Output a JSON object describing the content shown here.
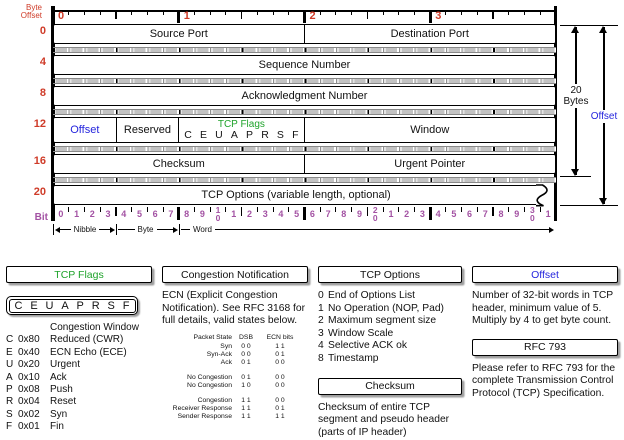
{
  "colors": {
    "red": "#cf3b28",
    "purple": "#a352a3",
    "green": "#1fa32b",
    "blue": "#2525dd",
    "ink": "#000000",
    "shadow": "#9e9e9e"
  },
  "diagram": {
    "byte_offset_label": "Byte Offset",
    "bit_label": "Bit",
    "byte_numbers": [
      "0",
      "1",
      "2",
      "3"
    ],
    "row_offsets": [
      "0",
      "4",
      "8",
      "12",
      "16",
      "20"
    ],
    "bit_numbers": [
      0,
      1,
      2,
      3,
      4,
      5,
      6,
      7,
      8,
      9,
      10,
      11,
      12,
      13,
      14,
      15,
      16,
      17,
      18,
      19,
      20,
      21,
      22,
      23,
      24,
      25,
      26,
      27,
      28,
      29,
      30,
      31
    ],
    "fields": {
      "source_port": "Source Port",
      "destination_port": "Destination Port",
      "sequence_number": "Sequence Number",
      "acknowledgment_number": "Acknowledgment Number",
      "offset": "Offset",
      "reserved": "Reserved",
      "tcp_flags_title": "TCP Flags",
      "tcp_flags_letters": [
        "C",
        "E",
        "U",
        "A",
        "P",
        "R",
        "S",
        "F"
      ],
      "window": "Window",
      "checksum": "Checksum",
      "urgent_pointer": "Urgent Pointer",
      "tcp_options": "TCP Options (variable length, optional)"
    },
    "scale": {
      "nibble": "Nibble",
      "byte": "Byte",
      "word": "Word"
    },
    "annotations": {
      "twenty_bytes": "20 Bytes",
      "offset": "Offset"
    }
  },
  "panels": {
    "tcp_flags": {
      "title": "TCP Flags",
      "letters": [
        "C",
        "E",
        "U",
        "A",
        "P",
        "R",
        "S",
        "F"
      ],
      "rows": [
        {
          "letter": "",
          "mask": "",
          "name": "Congestion Window"
        },
        {
          "letter": "C",
          "mask": "0x80",
          "name": "Reduced (CWR)"
        },
        {
          "letter": "E",
          "mask": "0x40",
          "name": "ECN Echo (ECE)"
        },
        {
          "letter": "U",
          "mask": "0x20",
          "name": "Urgent"
        },
        {
          "letter": "A",
          "mask": "0x10",
          "name": "Ack"
        },
        {
          "letter": "P",
          "mask": "0x08",
          "name": "Push"
        },
        {
          "letter": "R",
          "mask": "0x04",
          "name": "Reset"
        },
        {
          "letter": "S",
          "mask": "0x02",
          "name": "Syn"
        },
        {
          "letter": "F",
          "mask": "0x01",
          "name": "Fin"
        }
      ]
    },
    "congestion_notification": {
      "title": "Congestion Notification",
      "body": "ECN (Explicit Congestion Notification).  See RFC 3168 for full details, valid states below.",
      "table": {
        "headers": {
          "state": "Packet State",
          "dsb": "DSB",
          "ecn": "ECN bits"
        },
        "groups": {
          "handshake": [
            {
              "state": "Syn",
              "dsb": "0 0",
              "ecn": "1 1"
            },
            {
              "state": "Syn-Ack",
              "dsb": "0 0",
              "ecn": "0 1"
            },
            {
              "state": "Ack",
              "dsb": "0 1",
              "ecn": "0 0"
            }
          ],
          "no_congestion": [
            {
              "state": "No Congestion",
              "dsb": "0 1",
              "ecn": "0 0"
            },
            {
              "state": "No Congestion",
              "dsb": "1 0",
              "ecn": "0 0"
            }
          ],
          "congestion": [
            {
              "state": "Congestion",
              "dsb": "1 1",
              "ecn": "0 0"
            },
            {
              "state": "Receiver Response",
              "dsb": "1 1",
              "ecn": "0 1"
            },
            {
              "state": "Sender Response",
              "dsb": "1 1",
              "ecn": "1 1"
            }
          ]
        }
      }
    },
    "tcp_options": {
      "title": "TCP Options",
      "items": [
        {
          "code": "0",
          "name": "End of Options List"
        },
        {
          "code": "1",
          "name": "No Operation (NOP, Pad)"
        },
        {
          "code": "2",
          "name": "Maximum segment size"
        },
        {
          "code": "3",
          "name": "Window Scale"
        },
        {
          "code": "4",
          "name": "Selective ACK ok"
        },
        {
          "code": "8",
          "name": "Timestamp"
        }
      ]
    },
    "checksum": {
      "title": "Checksum",
      "body": "Checksum of entire TCP segment and pseudo header (parts of IP header)"
    },
    "offset": {
      "title": "Offset",
      "body": "Number of 32-bit words in TCP header, minimum value of 5.  Multiply by 4 to get byte count."
    },
    "rfc": {
      "title": "RFC 793",
      "body": "Please refer to RFC 793 for the complete Transmission Control Protocol (TCP) Specification."
    }
  }
}
